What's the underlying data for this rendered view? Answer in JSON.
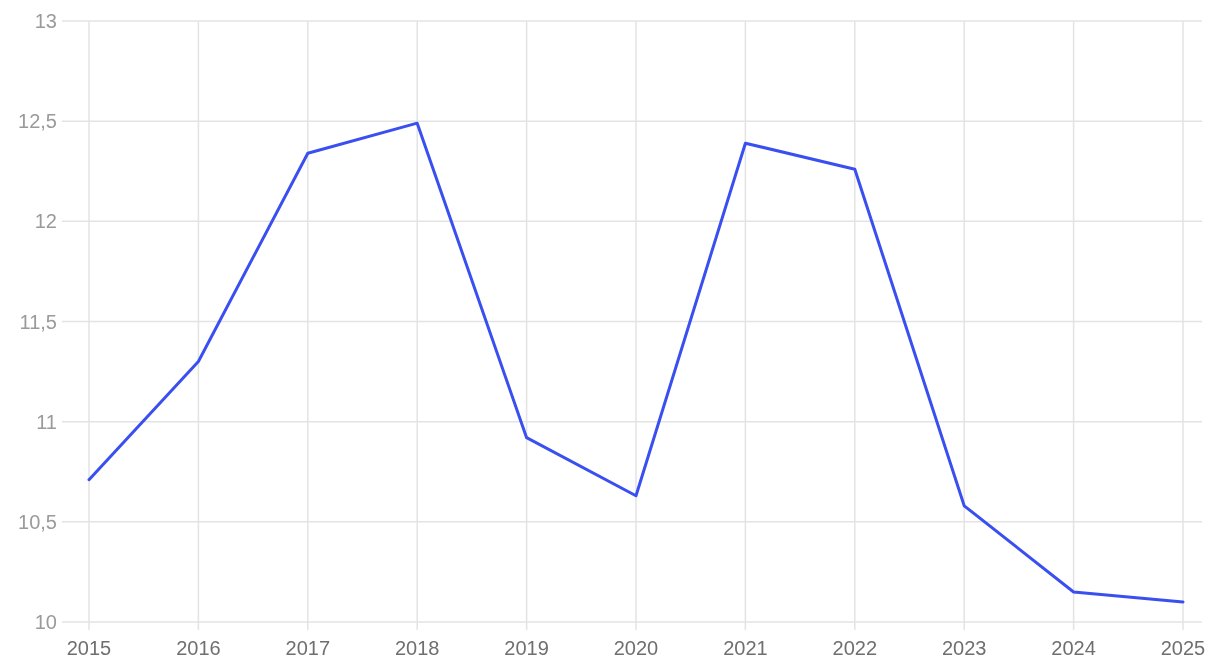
{
  "chart_data": {
    "type": "line",
    "categories": [
      "2015",
      "2016",
      "2017",
      "2018",
      "2019",
      "2020",
      "2021",
      "2022",
      "2023",
      "2024",
      "2025"
    ],
    "series": [
      {
        "color": "#3a4ff0",
        "values": [
          10.71,
          11.3,
          12.34,
          12.49,
          10.92,
          10.63,
          12.39,
          12.26,
          10.58,
          10.15,
          10.1
        ]
      }
    ],
    "ylim": [
      10,
      13
    ],
    "yticks": [
      10,
      {
        "value": 10.5,
        "label": "10,5"
      },
      11,
      {
        "value": 11.5,
        "label": "11,5"
      },
      12,
      {
        "value": 12.5,
        "label": "12,5"
      },
      13
    ],
    "grid": true,
    "marker": "none",
    "line_style": "solid"
  }
}
